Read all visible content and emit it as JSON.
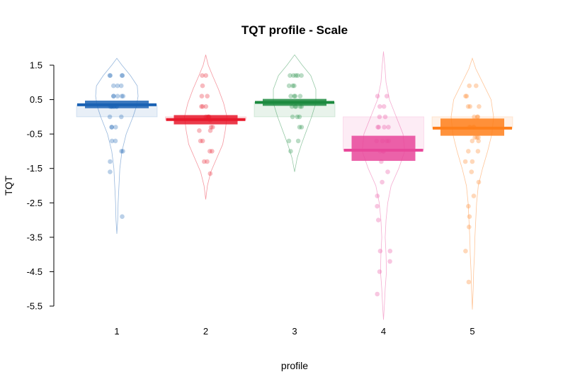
{
  "chart_data": {
    "type": "pirate",
    "title": "TQT profile - Scale",
    "xlabel": "profile",
    "ylabel": "TQT",
    "ylim": [
      -5.5,
      1.5
    ],
    "yticks": [
      1.5,
      0.5,
      -0.5,
      -1.5,
      -2.5,
      -3.5,
      -4.5,
      -5.5
    ],
    "grid": false,
    "legend": "none",
    "categories": [
      "1",
      "2",
      "3",
      "4",
      "5"
    ],
    "groups": [
      {
        "category": "1",
        "color": "#1a62b4",
        "mean": 0.35,
        "ci": [
          0.25,
          0.47
        ],
        "points": [
          1.2,
          1.2,
          1.2,
          1.2,
          0.9,
          0.9,
          0.9,
          0.6,
          0.6,
          0.6,
          0.6,
          0.6,
          0.3,
          0.3,
          0.3,
          0.3,
          0.3,
          0.3,
          0.3,
          0.0,
          0.0,
          -0.3,
          -0.3,
          -0.3,
          -0.7,
          -0.7,
          -1.0,
          -1.0,
          -1.3,
          -1.6,
          -2.9
        ],
        "density": [
          [
            -3.4,
            0.0
          ],
          [
            -3.0,
            0.02
          ],
          [
            -2.5,
            0.03
          ],
          [
            -2.0,
            0.05
          ],
          [
            -1.5,
            0.07
          ],
          [
            -1.0,
            0.12
          ],
          [
            -0.5,
            0.22
          ],
          [
            0.0,
            0.38
          ],
          [
            0.3,
            0.46
          ],
          [
            0.6,
            0.5
          ],
          [
            0.9,
            0.48
          ],
          [
            1.2,
            0.32
          ],
          [
            1.5,
            0.12
          ],
          [
            1.7,
            0.0
          ]
        ]
      },
      {
        "category": "2",
        "color": "#e8192c",
        "mean": -0.08,
        "ci": [
          -0.22,
          0.05
        ],
        "points": [
          1.2,
          1.2,
          0.9,
          0.6,
          0.6,
          0.3,
          0.3,
          0.3,
          0.0,
          0.0,
          0.0,
          0.0,
          -0.1,
          -0.3,
          -0.3,
          -0.4,
          -0.4,
          -0.7,
          -0.7,
          -1.0,
          -1.0,
          -1.3,
          -1.3,
          -1.65
        ],
        "density": [
          [
            -2.4,
            0.0
          ],
          [
            -2.0,
            0.04
          ],
          [
            -1.6,
            0.12
          ],
          [
            -1.2,
            0.26
          ],
          [
            -0.8,
            0.4
          ],
          [
            -0.4,
            0.46
          ],
          [
            0.0,
            0.5
          ],
          [
            0.4,
            0.42
          ],
          [
            0.8,
            0.3
          ],
          [
            1.2,
            0.16
          ],
          [
            1.5,
            0.06
          ],
          [
            1.8,
            0.0
          ]
        ]
      },
      {
        "category": "3",
        "color": "#1b8a3e",
        "mean": 0.42,
        "ci": [
          0.32,
          0.52
        ],
        "points": [
          1.2,
          1.2,
          1.2,
          1.2,
          1.2,
          0.9,
          0.9,
          0.9,
          0.6,
          0.6,
          0.6,
          0.6,
          0.3,
          0.3,
          0.3,
          0.3,
          0.3,
          0.0,
          0.0,
          0.0,
          -0.3,
          -0.3,
          -0.7,
          -0.7,
          -1.0
        ],
        "density": [
          [
            -1.6,
            0.0
          ],
          [
            -1.2,
            0.06
          ],
          [
            -0.8,
            0.16
          ],
          [
            -0.4,
            0.28
          ],
          [
            0.0,
            0.4
          ],
          [
            0.4,
            0.5
          ],
          [
            0.8,
            0.5
          ],
          [
            1.2,
            0.38
          ],
          [
            1.5,
            0.18
          ],
          [
            1.8,
            0.0
          ]
        ]
      },
      {
        "category": "4",
        "color": "#e8479a",
        "mean": -0.97,
        "ci": [
          -1.28,
          -0.55
        ],
        "points": [
          0.6,
          0.6,
          0.3,
          0.3,
          0.0,
          0.0,
          -0.3,
          -0.3,
          -0.3,
          -0.3,
          -0.7,
          -0.7,
          -0.7,
          -0.7,
          -1.0,
          -1.0,
          -1.0,
          -1.3,
          -1.6,
          -1.9,
          -2.3,
          -2.6,
          -3.0,
          -3.9,
          -3.9,
          -4.2,
          -4.5,
          -5.15
        ],
        "density": [
          [
            -5.9,
            0.0
          ],
          [
            -5.5,
            0.02
          ],
          [
            -5.0,
            0.04
          ],
          [
            -4.5,
            0.07
          ],
          [
            -4.0,
            0.06
          ],
          [
            -3.5,
            0.04
          ],
          [
            -3.0,
            0.06
          ],
          [
            -2.5,
            0.1
          ],
          [
            -2.0,
            0.18
          ],
          [
            -1.5,
            0.36
          ],
          [
            -1.0,
            0.5
          ],
          [
            -0.5,
            0.46
          ],
          [
            0.0,
            0.3
          ],
          [
            0.5,
            0.14
          ],
          [
            1.0,
            0.06
          ],
          [
            1.5,
            0.03
          ],
          [
            1.9,
            0.0
          ]
        ]
      },
      {
        "category": "5",
        "color": "#ff7f1a",
        "mean": -0.33,
        "ci": [
          -0.55,
          -0.05
        ],
        "points": [
          0.9,
          0.9,
          0.6,
          0.6,
          0.3,
          0.3,
          0.3,
          0.0,
          0.0,
          0.0,
          -0.3,
          -0.3,
          -0.3,
          -0.3,
          -0.6,
          -0.6,
          -0.6,
          -0.7,
          -0.7,
          -1.0,
          -1.0,
          -1.3,
          -1.3,
          -1.6,
          -1.9,
          -2.3,
          -2.6,
          -2.9,
          -3.2,
          -3.9,
          -4.8
        ],
        "density": [
          [
            -5.6,
            0.0
          ],
          [
            -5.0,
            0.02
          ],
          [
            -4.5,
            0.03
          ],
          [
            -4.0,
            0.05
          ],
          [
            -3.5,
            0.06
          ],
          [
            -3.0,
            0.08
          ],
          [
            -2.5,
            0.1
          ],
          [
            -2.0,
            0.14
          ],
          [
            -1.5,
            0.24
          ],
          [
            -1.0,
            0.36
          ],
          [
            -0.5,
            0.46
          ],
          [
            0.0,
            0.5
          ],
          [
            0.5,
            0.44
          ],
          [
            1.0,
            0.24
          ],
          [
            1.4,
            0.08
          ],
          [
            1.7,
            0.0
          ]
        ]
      }
    ]
  }
}
